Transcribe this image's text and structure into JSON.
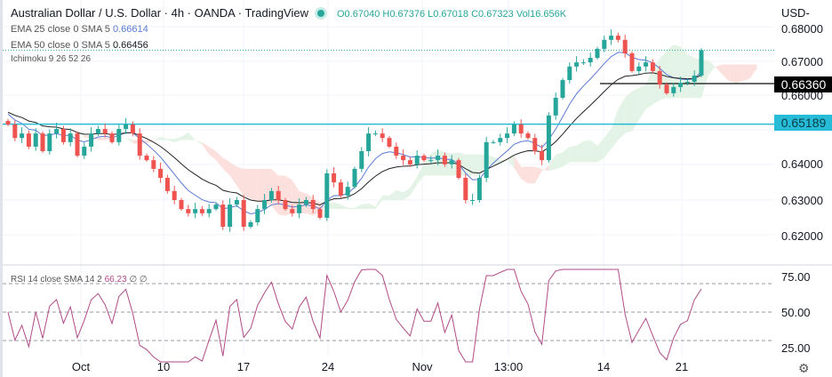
{
  "header": {
    "title": "Australian Dollar / U.S. Dollar · 4h · OANDA · TradingView",
    "ohlc": "O0.67040 H0.67376 L0.67018 C0.67323 Vol16.656K",
    "ema25": {
      "label": "EMA 25 close 0 SMA 5",
      "value": "0.66614",
      "color": "#5b7bd5"
    },
    "ema50": {
      "label": "EMA 50 close 0 SMA 5",
      "value": "0.66456",
      "color": "#131722"
    },
    "ichimoku": "Ichimoku 9 26 52 26",
    "rsi": {
      "label": "RSI 14 close SMA 14 2",
      "value": "66.23",
      "extra": "∅ ∅"
    }
  },
  "price_axis": {
    "currency": "USD",
    "ticks": [
      "0.68000",
      "0.67000",
      "0.66000",
      "0.64000",
      "0.63000",
      "0.62000"
    ]
  },
  "rsi_axis": {
    "ticks": [
      "75.00",
      "50.00",
      "25.00"
    ]
  },
  "time_axis": [
    "Oct",
    "10",
    "17",
    "24",
    "Nov",
    "13:00",
    "14",
    "21"
  ],
  "levels": {
    "support": {
      "value": "0.66360",
      "color": "#000000"
    },
    "resistance": {
      "value": "0.65189",
      "color": "#26bcd7"
    }
  },
  "chart_data": {
    "type": "candlestick",
    "ylim": [
      0.615,
      0.682
    ],
    "last_price": 0.67323,
    "closes": [
      0.6518,
      0.6479,
      0.6492,
      0.6454,
      0.6492,
      0.6441,
      0.6492,
      0.6505,
      0.6467,
      0.6492,
      0.6428,
      0.6454,
      0.6492,
      0.6505,
      0.6492,
      0.6467,
      0.6505,
      0.6518,
      0.6492,
      0.6428,
      0.6415,
      0.639,
      0.6364,
      0.6326,
      0.63,
      0.6274,
      0.6262,
      0.6274,
      0.6262,
      0.6274,
      0.6287,
      0.6223,
      0.6287,
      0.63,
      0.6223,
      0.6236,
      0.6274,
      0.63,
      0.6326,
      0.63,
      0.6274,
      0.6262,
      0.6287,
      0.63,
      0.6274,
      0.6249,
      0.6377,
      0.6351,
      0.6313,
      0.6338,
      0.639,
      0.6441,
      0.6492,
      0.6492,
      0.6479,
      0.6454,
      0.6428,
      0.6415,
      0.6403,
      0.6428,
      0.6415,
      0.6415,
      0.6428,
      0.6403,
      0.6415,
      0.6364,
      0.63,
      0.63,
      0.6364,
      0.6467,
      0.6467,
      0.6479,
      0.6492,
      0.6518,
      0.6492,
      0.6479,
      0.6441,
      0.6415,
      0.6544,
      0.6595,
      0.6646,
      0.6685,
      0.6697,
      0.6697,
      0.671,
      0.6736,
      0.6762,
      0.6774,
      0.6762,
      0.6723,
      0.6672,
      0.6685,
      0.6697,
      0.6672,
      0.6633,
      0.6608,
      0.6626,
      0.6638,
      0.6641,
      0.6659,
      0.67323
    ],
    "colors": {
      "up": "#26a69a",
      "down": "#ef5350",
      "rsi": "#b04a87",
      "cloud_up": "#e3f3e6",
      "cloud_down": "#fbe0de"
    },
    "rsi_levels": [
      70,
      50,
      30
    ],
    "rsi_ylim": [
      15,
      80
    ]
  }
}
